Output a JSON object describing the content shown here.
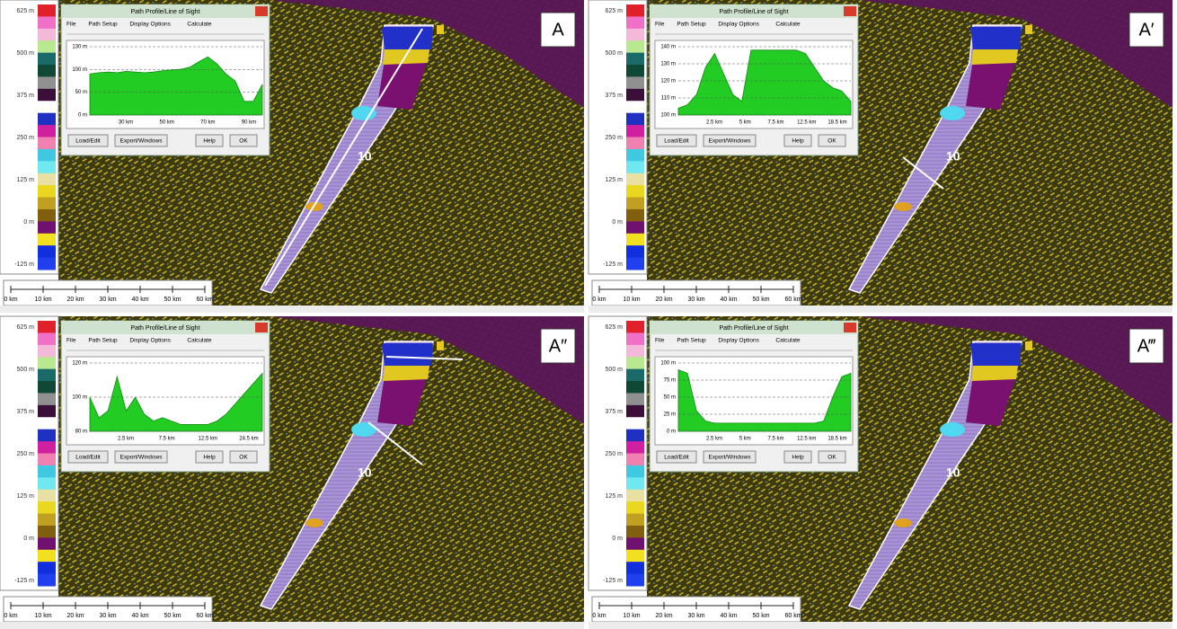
{
  "panels": [
    {
      "label": "A",
      "map_label": "10",
      "legend": [
        "625 m",
        "500 m",
        "375 m",
        "250 m",
        "125 m",
        "0 m",
        "-125 m"
      ],
      "dialog": {
        "title": "Path Profile/Line of Sight",
        "menu": [
          "File",
          "Path Setup",
          "Display Options",
          "Calculate"
        ],
        "y_labels": [
          "130 m",
          "100 m",
          "50 m",
          "0 m"
        ],
        "x_labels": [
          "30 km",
          "50 km",
          "70 km",
          "90 km"
        ],
        "buttons": [
          "Load/Edit",
          "Export/Windows",
          "Help",
          "OK"
        ]
      },
      "scale": [
        "0 km",
        "10 km",
        "20 km",
        "30 km",
        "40 km",
        "50 km",
        "60 km"
      ]
    },
    {
      "label": "A′",
      "map_label": "10",
      "legend": [
        "625 m",
        "500 m",
        "375 m",
        "250 m",
        "125 m",
        "0 m",
        "-125 m"
      ],
      "dialog": {
        "title": "Path Profile/Line of Sight",
        "menu": [
          "File",
          "Path Setup",
          "Display Options",
          "Calculate"
        ],
        "y_labels": [
          "140 m",
          "130 m",
          "120 m",
          "110 m",
          "100 m"
        ],
        "x_labels": [
          "2.5 km",
          "5 km",
          "7.5 km",
          "12.5 km",
          "18.5 km"
        ],
        "buttons": [
          "Load/Edit",
          "Export/Windows",
          "Help",
          "OK"
        ]
      },
      "scale": [
        "0 km",
        "10 km",
        "20 km",
        "30 km",
        "40 km",
        "50 km",
        "60 km"
      ]
    },
    {
      "label": "A″",
      "map_label": "10",
      "legend": [
        "625 m",
        "500 m",
        "375 m",
        "250 m",
        "125 m",
        "0 m",
        "-125 m"
      ],
      "dialog": {
        "title": "Path Profile/Line of Sight",
        "menu": [
          "File",
          "Path Setup",
          "Display Options",
          "Calculate"
        ],
        "y_labels": [
          "120 m",
          "100 m",
          "80 m"
        ],
        "x_labels": [
          "2.5 km",
          "7.5 km",
          "12.5 km",
          "24.5 km"
        ],
        "buttons": [
          "Load/Edit",
          "Export/Windows",
          "Help",
          "OK"
        ]
      },
      "scale": [
        "0 km",
        "10 km",
        "20 km",
        "30 km",
        "40 km",
        "50 km",
        "60 km"
      ]
    },
    {
      "label": "A‴",
      "map_label": "10",
      "legend": [
        "625 m",
        "500 m",
        "375 m",
        "250 m",
        "125 m",
        "0 m",
        "-125 m"
      ],
      "dialog": {
        "title": "Path Profile/Line of Sight",
        "menu": [
          "File",
          "Path Setup",
          "Display Options",
          "Calculate"
        ],
        "y_labels": [
          "100 m",
          "75 m",
          "50 m",
          "25 m",
          "0 m"
        ],
        "x_labels": [
          "2.5 km",
          "5 km",
          "7.5 km",
          "12.5 km",
          "18.5 km"
        ],
        "buttons": [
          "Load/Edit",
          "Export/Windows",
          "Help",
          "OK"
        ]
      },
      "scale": [
        "0 km",
        "10 km",
        "20 km",
        "30 km",
        "40 km",
        "50 km",
        "60 km"
      ]
    }
  ]
}
